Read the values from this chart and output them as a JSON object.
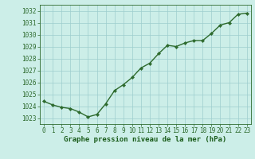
{
  "x": [
    0,
    1,
    2,
    3,
    4,
    5,
    6,
    7,
    8,
    9,
    10,
    11,
    12,
    13,
    14,
    15,
    16,
    17,
    18,
    19,
    20,
    21,
    22,
    23
  ],
  "y": [
    1024.4,
    1024.1,
    1023.9,
    1023.8,
    1023.5,
    1023.1,
    1023.3,
    1024.2,
    1025.3,
    1025.8,
    1026.4,
    1027.2,
    1027.6,
    1028.4,
    1029.1,
    1029.0,
    1029.3,
    1029.5,
    1029.5,
    1030.1,
    1030.8,
    1031.0,
    1031.7,
    1031.8
  ],
  "xlim": [
    -0.5,
    23.5
  ],
  "ylim": [
    1022.5,
    1032.5
  ],
  "yticks": [
    1023,
    1024,
    1025,
    1026,
    1027,
    1028,
    1029,
    1030,
    1031,
    1032
  ],
  "xticks": [
    0,
    1,
    2,
    3,
    4,
    5,
    6,
    7,
    8,
    9,
    10,
    11,
    12,
    13,
    14,
    15,
    16,
    17,
    18,
    19,
    20,
    21,
    22,
    23
  ],
  "xlabel": "Graphe pression niveau de la mer (hPa)",
  "line_color": "#2d6a2d",
  "marker_color": "#2d6a2d",
  "bg_color": "#cceee8",
  "grid_color": "#9ecece",
  "tick_label_color": "#1a5c1a",
  "xlabel_color": "#1a5c1a",
  "axis_color": "#2d6a2d",
  "xlabel_fontsize": 6.5,
  "tick_fontsize": 5.5,
  "linewidth": 1.0,
  "markersize": 2.2
}
